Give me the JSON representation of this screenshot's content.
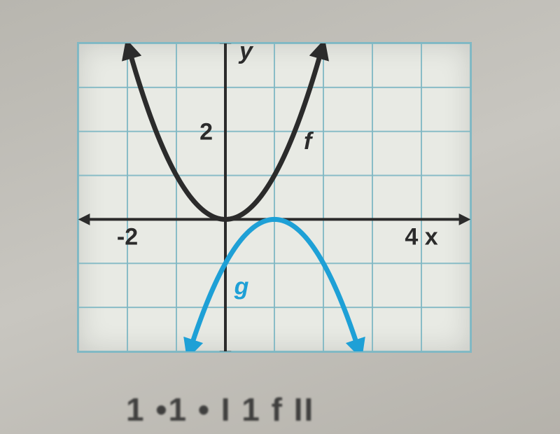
{
  "chart": {
    "type": "line",
    "background_color": "#e8eae4",
    "page_background": "#c2bfb8",
    "grid_color": "#7fb8c4",
    "grid_border_color": "#7fb8c4",
    "axis_color": "#2b2b2b",
    "axis_width": 4,
    "arrow_size": 14,
    "xlim": [
      -3,
      5
    ],
    "ylim": [
      -3,
      4
    ],
    "xtick_labels": [
      {
        "x": -2,
        "label": "-2"
      },
      {
        "x": 4,
        "label": "4 x"
      }
    ],
    "ytick_labels": [
      {
        "y": 2,
        "label": "2"
      }
    ],
    "y_axis_label": "y",
    "y_axis_label_color": "#2b2b2b",
    "label_fontsize": 34,
    "label_fontweight": "600",
    "label_fontfamily": "Arial, sans-serif",
    "curves": {
      "f": {
        "label": "f",
        "label_pos": {
          "x": 1.6,
          "y": 1.6
        },
        "label_color": "#2b2b2b",
        "color": "#2b2b2b",
        "width": 7,
        "arrow_ends": true,
        "type": "parabola",
        "vertex": {
          "x": 0,
          "y": 0
        },
        "a": 1.0,
        "x_range": [
          -1.97,
          1.97
        ]
      },
      "g": {
        "label": "g",
        "label_pos": {
          "x": 0.18,
          "y": -1.7
        },
        "label_color": "#1ea0d6",
        "color": "#1ea0d6",
        "width": 7,
        "arrow_ends": true,
        "type": "parabola",
        "vertex": {
          "x": 1,
          "y": 0
        },
        "a": -1.0,
        "x_range": [
          -0.72,
          2.72
        ]
      }
    }
  },
  "footer_text": "1  •1  •  I 1 f  II"
}
